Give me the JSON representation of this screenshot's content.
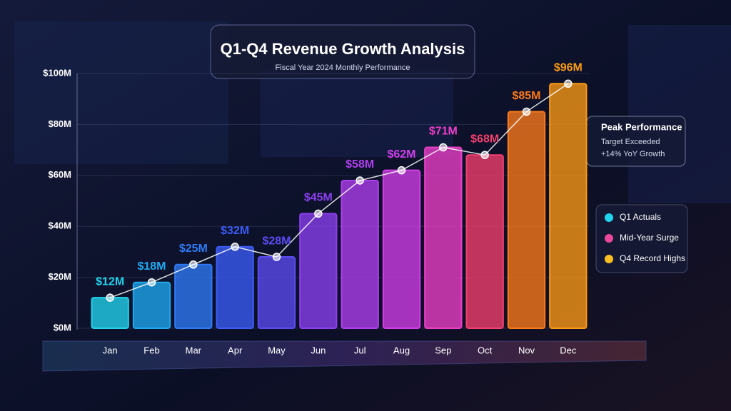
{
  "chart_data": {
    "type": "bar",
    "title": "Q1-Q4 Revenue Growth Analysis",
    "subtitle": "Fiscal Year 2024 Monthly Performance",
    "categories": [
      "Jan",
      "Feb",
      "Mar",
      "Apr",
      "May",
      "Jun",
      "Jul",
      "Aug",
      "Sep",
      "Oct",
      "Nov",
      "Dec"
    ],
    "values": [
      12,
      18,
      25,
      32,
      28,
      45,
      58,
      62,
      71,
      68,
      85,
      96
    ],
    "value_labels": [
      "$12M",
      "$18M",
      "$25M",
      "$32M",
      "$28M",
      "$45M",
      "$58M",
      "$62M",
      "$71M",
      "$68M",
      "$85M",
      "$96M"
    ],
    "colors": [
      "#22d3ee",
      "#1fa8f0",
      "#2f7af5",
      "#3b5cf6",
      "#5b4cf0",
      "#8b3ff0",
      "#b03ff0",
      "#d23ee8",
      "#ec3fc8",
      "#f43f6e",
      "#fb7a1a",
      "#fb9a14"
    ],
    "ylim": [
      0,
      100
    ],
    "yticks": [
      {
        "value": 0,
        "label": "$0M"
      },
      {
        "value": 20,
        "label": "$20M"
      },
      {
        "value": 40,
        "label": "$40M"
      },
      {
        "value": 60,
        "label": "$60M"
      },
      {
        "value": 80,
        "label": "$80M"
      },
      {
        "value": 100,
        "label": "$100M"
      }
    ],
    "grid": true,
    "trend_line": true,
    "annotation": {
      "title": "Peak Performance",
      "lines": [
        "Target Exceeded",
        "+14% YoY Growth"
      ]
    },
    "legend": [
      {
        "name": "Q1 Actuals",
        "color": "#22d3ee"
      },
      {
        "name": "Mid-Year Surge",
        "color": "#ec4899"
      },
      {
        "name": "Q4 Record Highs",
        "color": "#fbbf24"
      }
    ]
  }
}
